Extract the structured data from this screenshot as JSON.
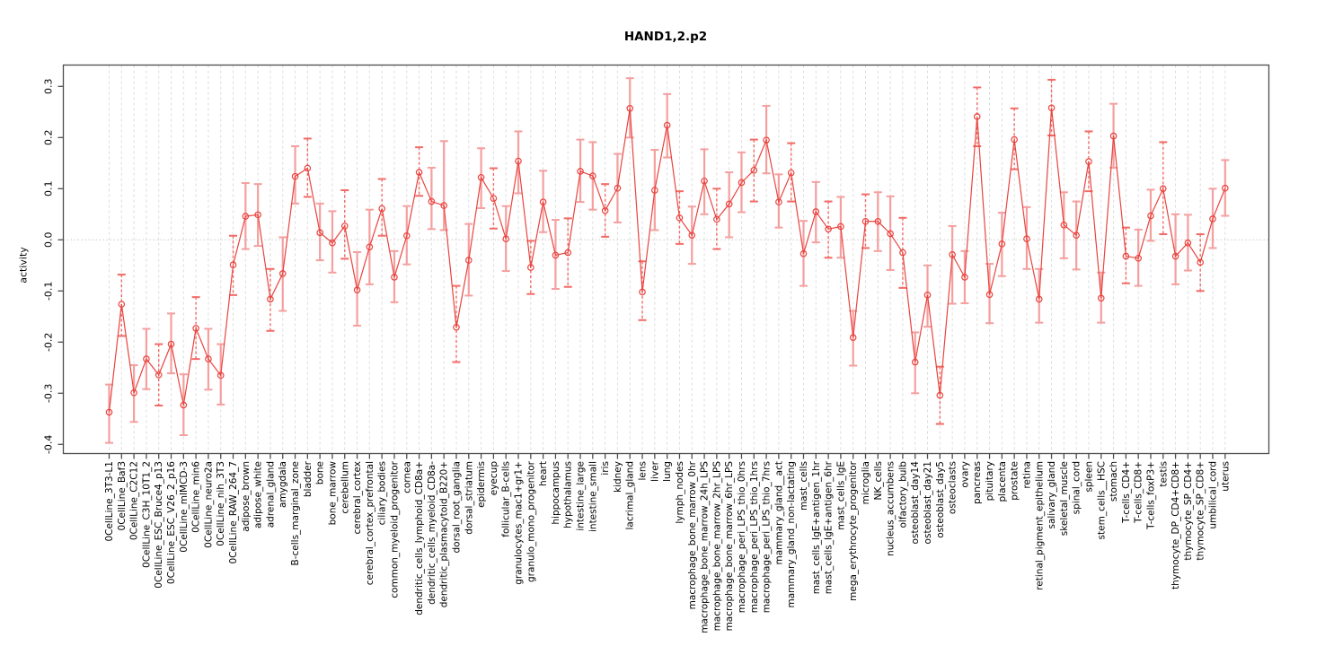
{
  "title": "HAND1,2.p2",
  "chart_data": {
    "type": "line",
    "title": "HAND1,2.p2",
    "xlabel": "",
    "ylabel": "activity",
    "ylim": [
      -0.42,
      0.34
    ],
    "yticks": [
      0.3,
      0.2,
      0.1,
      0.0,
      -0.1,
      -0.2,
      -0.3,
      -0.4
    ],
    "grid": "vertical dashed gridline at each category; dotted horizontal line at y=0",
    "legend": "none",
    "marker": "open-circle",
    "error_bars": true,
    "colors": {
      "series": "#e8443f",
      "error_bar": "#f59f9f",
      "error_bar_dash": "#f26b66",
      "grid": "#dcdcdc",
      "zero_line": "#c9c9c9",
      "box": "#4d4d4d"
    },
    "categories": [
      "0CellLine_3T3-L1",
      "0CellLine_Baf3",
      "0CellLine_C2C12",
      "0CellLine_C3H_10T1_2",
      "0CellLine_ESC_Bruce4_p13",
      "0CellLine_ESC_V26_2_p16",
      "0CellLine_mIMCD-3",
      "0CellLine_min6",
      "0CellLine_neuro2a",
      "0CellLine_nih_3T3",
      "0CellLine_RAW_264_7",
      "adipose_brown",
      "adipose_white",
      "adrenal_gland",
      "amygdala",
      "B-cells_marginal_zone",
      "bladder",
      "bone",
      "bone_marrow",
      "cerebellum",
      "cerebral_cortex",
      "cerebral_cortex_prefrontal",
      "ciliary_bodies",
      "common_myeloid_progenitor",
      "cornea",
      "dendritic_cells_lymphoid_CD8a+",
      "dendritic_cells_myeloid_CD8a-",
      "dendritic_plasmacytoid_B220+",
      "dorsal_root_ganglia",
      "dorsal_striatum",
      "epidermis",
      "eyecup",
      "follicular_B-cells",
      "granulocytes_mac1+gr1+",
      "granulo_mono_progenitor",
      "heart",
      "hippocampus",
      "hypothalamus",
      "intestine_large",
      "intestine_small",
      "iris",
      "kidney",
      "lacrimal_gland",
      "lens",
      "liver",
      "lung",
      "lymph_nodes",
      "macrophage_bone_marrow_0hr",
      "macrophage_bone_marrow_24h_LPS",
      "macrophage_bone_marrow_2hr_LPS",
      "macrophage_bone_marrow_6hr_LPS",
      "macrophage_peri_LPS_thio_0hrs",
      "macrophage_peri_LPS_thio_1hrs",
      "macrophage_peri_LPS_thio_7hrs",
      "mammary_gland__act",
      "mammary_gland_non-lactating",
      "mast_cells",
      "mast_cells_IgE+antigen_1hr",
      "mast_cells_IgE+antigen_6hr",
      "mast_cells_IgE",
      "mega_erythrocyte_progenitor",
      "microglia",
      "NK_cells",
      "nucleus_accumbens",
      "olfactory_bulb",
      "osteoblast_day14",
      "osteoblast_day21",
      "osteoblast_day5",
      "osteoclasts",
      "ovary",
      "pancreas",
      "pituitary",
      "placenta",
      "prostate",
      "retina",
      "retinal_pigment_epithelium",
      "salivary_gland",
      "skeletal_muscle",
      "spinal_cord",
      "spleen",
      "stem_cells__HSC",
      "stomach",
      "T-cells_CD4+",
      "T-cells_CD8+",
      "T-cells_foxP3+",
      "testis",
      "thymocyte_DP_CD4+CD8+",
      "thymocyte_SP_CD4+",
      "thymocyte_SP_CD8+",
      "umbilical_cord",
      "uterus"
    ],
    "series": [
      {
        "name": "activity",
        "values": [
          -0.337,
          -0.126,
          -0.299,
          -0.233,
          -0.264,
          -0.204,
          -0.323,
          -0.173,
          -0.233,
          -0.265,
          -0.049,
          0.046,
          0.049,
          -0.116,
          -0.066,
          0.124,
          0.14,
          0.014,
          -0.006,
          0.027,
          -0.098,
          -0.014,
          0.061,
          -0.073,
          0.008,
          0.132,
          0.075,
          0.067,
          -0.171,
          -0.04,
          0.122,
          0.081,
          0.002,
          0.154,
          -0.054,
          0.074,
          -0.03,
          -0.025,
          0.134,
          0.125,
          0.057,
          0.101,
          0.257,
          -0.102,
          0.097,
          0.224,
          0.043,
          0.009,
          0.115,
          0.04,
          0.07,
          0.112,
          0.136,
          0.195,
          0.074,
          0.131,
          -0.027,
          0.055,
          0.021,
          0.026,
          -0.191,
          0.036,
          0.036,
          0.012,
          -0.025,
          -0.239,
          -0.108,
          -0.304,
          -0.029,
          -0.073,
          0.241,
          -0.107,
          -0.008,
          0.196,
          0.002,
          -0.116,
          0.258,
          0.029,
          0.009,
          0.153,
          -0.114,
          0.203,
          -0.032,
          -0.036,
          0.047,
          0.1,
          -0.032,
          -0.006,
          -0.044,
          0.041,
          0.101
        ],
        "ci_lower": [
          -0.397,
          -0.188,
          -0.356,
          -0.292,
          -0.324,
          -0.261,
          -0.382,
          -0.233,
          -0.293,
          -0.322,
          -0.108,
          -0.018,
          -0.012,
          -0.178,
          -0.139,
          0.071,
          0.084,
          -0.04,
          -0.064,
          -0.037,
          -0.168,
          -0.087,
          0.008,
          -0.122,
          -0.048,
          0.086,
          0.021,
          0.019,
          -0.239,
          -0.109,
          0.062,
          0.022,
          -0.061,
          0.091,
          -0.106,
          0.015,
          -0.096,
          -0.092,
          0.074,
          0.059,
          0.006,
          0.034,
          0.2,
          -0.157,
          0.019,
          0.161,
          -0.008,
          -0.047,
          0.05,
          -0.018,
          0.005,
          0.054,
          0.075,
          0.13,
          0.024,
          0.075,
          -0.09,
          -0.005,
          -0.035,
          -0.035,
          -0.246,
          -0.016,
          -0.022,
          -0.059,
          -0.094,
          -0.3,
          -0.17,
          -0.36,
          -0.125,
          -0.124,
          0.183,
          -0.163,
          -0.071,
          0.138,
          -0.057,
          -0.162,
          0.204,
          -0.036,
          -0.058,
          0.095,
          -0.162,
          0.141,
          -0.085,
          -0.09,
          -0.002,
          0.011,
          -0.087,
          -0.06,
          -0.1,
          -0.016,
          0.047
        ],
        "ci_upper": [
          -0.283,
          -0.068,
          -0.245,
          -0.174,
          -0.204,
          -0.144,
          -0.263,
          -0.112,
          -0.174,
          -0.204,
          0.008,
          0.111,
          0.109,
          -0.057,
          0.005,
          0.183,
          0.198,
          0.071,
          0.056,
          0.097,
          -0.024,
          0.059,
          0.119,
          -0.022,
          0.066,
          0.181,
          0.141,
          0.193,
          -0.09,
          0.031,
          0.179,
          0.14,
          0.066,
          0.212,
          -0.002,
          0.135,
          0.039,
          0.042,
          0.196,
          0.191,
          0.109,
          0.168,
          0.316,
          -0.042,
          0.176,
          0.285,
          0.095,
          0.065,
          0.177,
          0.1,
          0.132,
          0.171,
          0.196,
          0.262,
          0.128,
          0.189,
          0.037,
          0.113,
          0.075,
          0.084,
          -0.139,
          0.089,
          0.093,
          0.085,
          0.043,
          -0.181,
          -0.05,
          -0.248,
          0.027,
          -0.022,
          0.298,
          -0.047,
          0.053,
          0.257,
          0.064,
          -0.057,
          0.313,
          0.093,
          0.075,
          0.212,
          -0.064,
          0.266,
          0.024,
          0.02,
          0.098,
          0.191,
          0.05,
          0.049,
          0.011,
          0.1,
          0.156
        ]
      }
    ]
  }
}
